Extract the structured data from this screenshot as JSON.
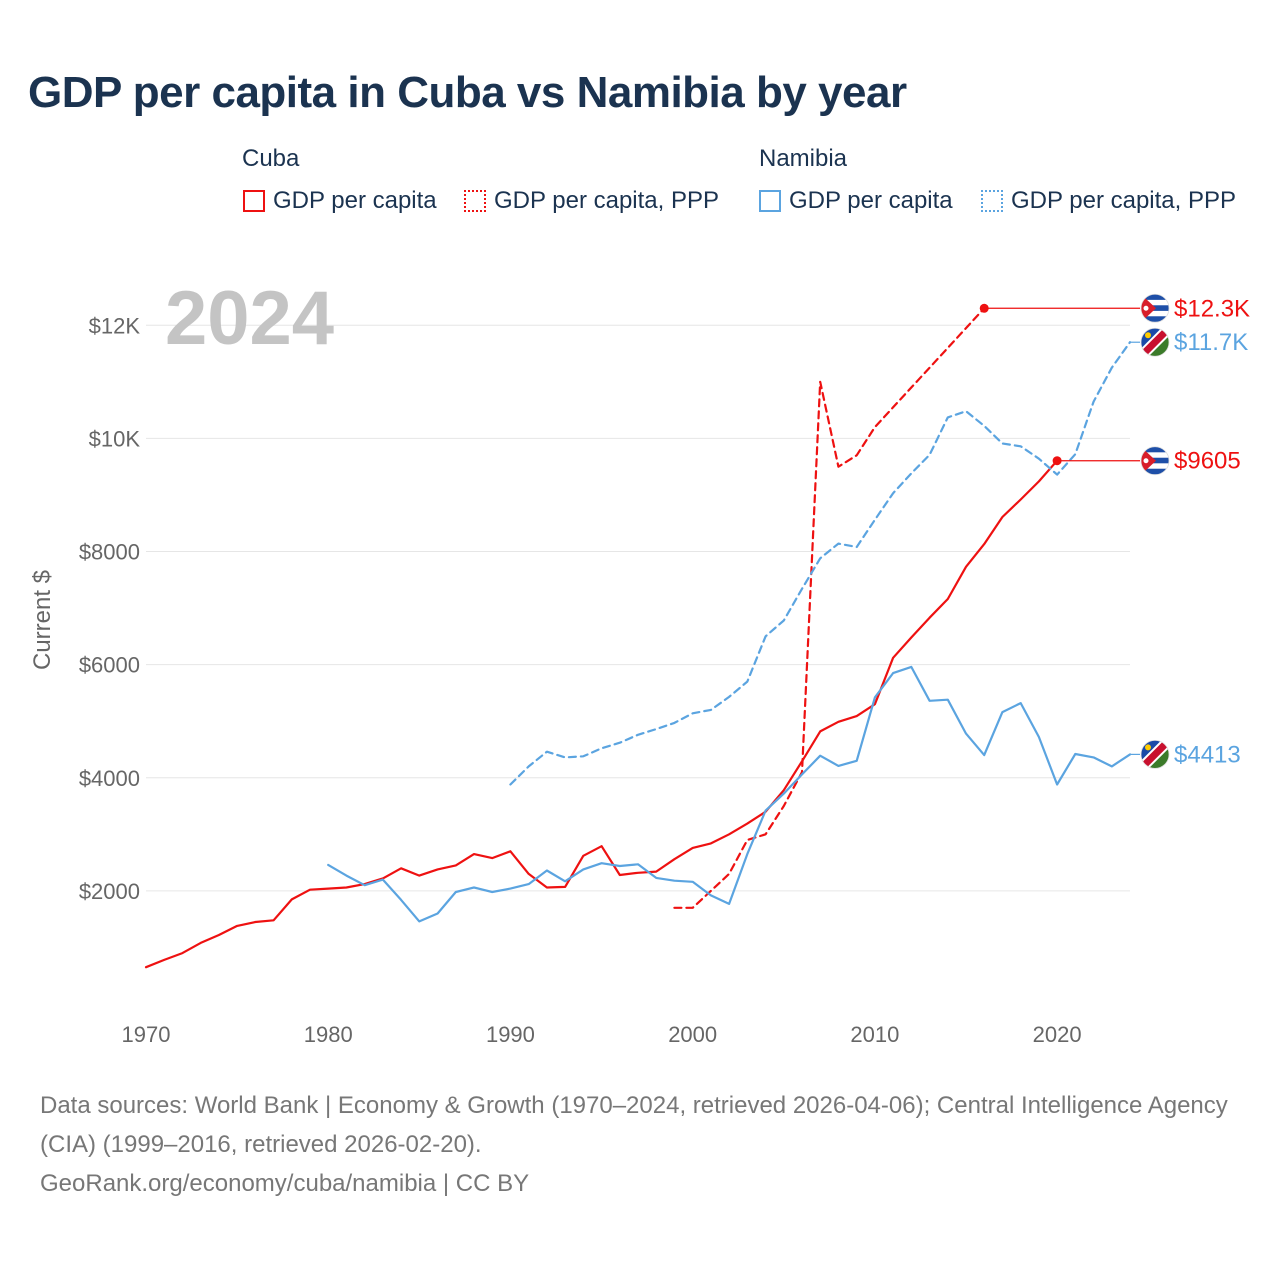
{
  "title": "GDP per capita in Cuba vs Namibia by year",
  "legend": {
    "cuba_title": "Cuba",
    "namibia_title": "Namibia",
    "cuba_gdp": "GDP per capita",
    "cuba_ppp": "GDP per capita, PPP",
    "namibia_gdp": "GDP per capita",
    "namibia_ppp": "GDP per capita, PPP"
  },
  "colors": {
    "cuba": "#ee1111",
    "namibia": "#5ba4e0",
    "grid": "#e6e6e6",
    "year": "#c4c4c4"
  },
  "footer": {
    "sources": "Data sources: World Bank | Economy & Growth (1970–2024, retrieved 2026-04-06); Central Intelligence Agency (CIA) (1999–2016, retrieved 2026-02-20).",
    "site": "GeoRank.org/economy/cuba/namibia | CC BY"
  },
  "chart_data": {
    "type": "line",
    "year_label": "2024",
    "ylabel": "Current $",
    "xlim": [
      1970,
      2024
    ],
    "ylim": [
      0,
      12800
    ],
    "x_ticks": [
      1970,
      1980,
      1990,
      2000,
      2010,
      2020
    ],
    "y_ticks": [
      {
        "value": 2000,
        "label": "$2000"
      },
      {
        "value": 4000,
        "label": "$4000"
      },
      {
        "value": 6000,
        "label": "$6000"
      },
      {
        "value": 8000,
        "label": "$8000"
      },
      {
        "value": 10000,
        "label": "$10K"
      },
      {
        "value": 12000,
        "label": "$12K"
      }
    ],
    "series": [
      {
        "name": "Cuba GDP per capita",
        "country": "cuba",
        "dashed": false,
        "x": [
          1970,
          1971,
          1972,
          1973,
          1974,
          1975,
          1976,
          1977,
          1978,
          1979,
          1980,
          1981,
          1982,
          1983,
          1984,
          1985,
          1986,
          1987,
          1988,
          1989,
          1990,
          1991,
          1992,
          1993,
          1994,
          1995,
          1996,
          1997,
          1998,
          1999,
          2000,
          2001,
          2002,
          2003,
          2004,
          2005,
          2006,
          2007,
          2008,
          2009,
          2010,
          2011,
          2012,
          2013,
          2014,
          2015,
          2016,
          2017,
          2018,
          2019,
          2020
        ],
        "values": [
          650,
          780,
          900,
          1080,
          1220,
          1380,
          1450,
          1480,
          1850,
          2020,
          2040,
          2060,
          2120,
          2220,
          2400,
          2270,
          2380,
          2450,
          2650,
          2580,
          2700,
          2300,
          2060,
          2070,
          2620,
          2790,
          2280,
          2320,
          2340,
          2560,
          2760,
          2840,
          3000,
          3190,
          3400,
          3780,
          4290,
          4820,
          4990,
          5090,
          5300,
          6120,
          6480,
          6830,
          7160,
          7730,
          8130,
          8610,
          8920,
          9240,
          9605
        ],
        "end_label": "$9605",
        "end_value": 9605
      },
      {
        "name": "Cuba GDP per capita, PPP",
        "country": "cuba",
        "dashed": true,
        "x": [
          1999,
          2000,
          2001,
          2002,
          2003,
          2004,
          2005,
          2006,
          2007,
          2008,
          2009,
          2010,
          2011,
          2012,
          2013,
          2014,
          2015,
          2016
        ],
        "values": [
          1700,
          1700,
          2000,
          2300,
          2900,
          3000,
          3500,
          4100,
          11000,
          9500,
          9700,
          10200,
          10550,
          10900,
          11250,
          11600,
          11950,
          12300
        ],
        "end_label": "$12.3K",
        "end_value": 12300
      },
      {
        "name": "Namibia GDP per capita",
        "country": "namibia",
        "dashed": false,
        "x": [
          1980,
          1981,
          1982,
          1983,
          1984,
          1985,
          1986,
          1987,
          1988,
          1989,
          1990,
          1991,
          1992,
          1993,
          1994,
          1995,
          1996,
          1997,
          1998,
          1999,
          2000,
          2001,
          2002,
          2003,
          2004,
          2005,
          2006,
          2007,
          2008,
          2009,
          2010,
          2011,
          2012,
          2013,
          2014,
          2015,
          2016,
          2017,
          2018,
          2019,
          2020,
          2021,
          2022,
          2023,
          2024
        ],
        "values": [
          2460,
          2270,
          2100,
          2200,
          1840,
          1460,
          1600,
          1980,
          2060,
          1980,
          2040,
          2120,
          2360,
          2170,
          2380,
          2490,
          2440,
          2470,
          2230,
          2180,
          2160,
          1920,
          1770,
          2650,
          3420,
          3720,
          4060,
          4390,
          4210,
          4300,
          5420,
          5850,
          5960,
          5360,
          5380,
          4780,
          4400,
          5160,
          5320,
          4720,
          3880,
          4420,
          4360,
          4200,
          4413
        ],
        "end_label": "$4413",
        "end_value": 4413
      },
      {
        "name": "Namibia GDP per capita, PPP",
        "country": "namibia",
        "dashed": true,
        "x": [
          1990,
          1991,
          1992,
          1993,
          1994,
          1995,
          1996,
          1997,
          1998,
          1999,
          2000,
          2001,
          2002,
          2003,
          2004,
          2005,
          2006,
          2007,
          2008,
          2009,
          2010,
          2011,
          2012,
          2013,
          2014,
          2015,
          2016,
          2017,
          2018,
          2019,
          2020,
          2021,
          2022,
          2023,
          2024
        ],
        "values": [
          3880,
          4200,
          4460,
          4360,
          4380,
          4520,
          4620,
          4760,
          4860,
          4970,
          5140,
          5200,
          5430,
          5700,
          6500,
          6780,
          7340,
          7880,
          8140,
          8080,
          8560,
          9030,
          9380,
          9710,
          10370,
          10480,
          10220,
          9910,
          9860,
          9640,
          9360,
          9720,
          10650,
          11250,
          11700
        ],
        "end_label": "$11.7K",
        "end_value": 11700
      }
    ]
  }
}
